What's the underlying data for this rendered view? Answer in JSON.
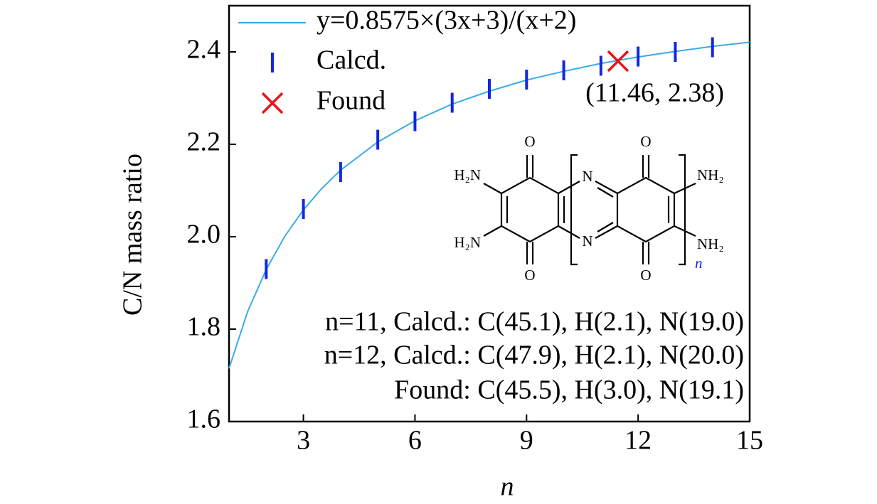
{
  "chart_data": {
    "type": "line",
    "y_label": "C/N mass ratio",
    "x_label": "n",
    "xlim": [
      1,
      15
    ],
    "ylim": [
      1.6,
      2.5
    ],
    "xticks": [
      3,
      6,
      9,
      12,
      15
    ],
    "yticks": [
      1.6,
      1.8,
      {
        "value": 2.0,
        "label": "2.0"
      },
      2.2,
      2.4
    ],
    "series": [
      {
        "name": "y=0.8575×(3x+3)/(x+2)",
        "color": "#3aaaea",
        "style": "line",
        "x": [
          1,
          1.5,
          2,
          2.5,
          3,
          3.5,
          4,
          5,
          6,
          7,
          8,
          9,
          10,
          11,
          12,
          13,
          14,
          15
        ],
        "values": [
          1.715,
          1.838,
          1.929,
          2.001,
          2.058,
          2.105,
          2.144,
          2.205,
          2.251,
          2.287,
          2.315,
          2.339,
          2.358,
          2.375,
          2.389,
          2.401,
          2.412,
          2.421
        ]
      },
      {
        "name": "Calcd.",
        "color": "#1028e0",
        "style": "vline",
        "x": [
          2,
          3,
          4,
          5,
          6,
          7,
          8,
          9,
          10,
          11,
          12,
          13,
          14
        ],
        "values": [
          1.93,
          2.06,
          2.14,
          2.21,
          2.25,
          2.29,
          2.32,
          2.34,
          2.36,
          2.37,
          2.39,
          2.4,
          2.41
        ]
      },
      {
        "name": "Found",
        "color": "#e8141a",
        "style": "cross",
        "x": [
          11.46
        ],
        "values": [
          2.38
        ],
        "value_labels": [
          "(11.46, 2.38)"
        ]
      }
    ],
    "annotations": [
      "n=11, Calcd.: C(45.1), H(2.1), N(19.0)",
      "n=12, Calcd.: C(47.9), H(2.1), N(20.0)",
      "Found: C(45.5), H(3.0), N(19.1)"
    ]
  },
  "structure": {
    "labels": [
      "O",
      "O",
      "O",
      "O",
      "H₂N",
      "H₂N",
      "N",
      "N",
      "NH₂",
      "NH₂",
      "n"
    ]
  }
}
